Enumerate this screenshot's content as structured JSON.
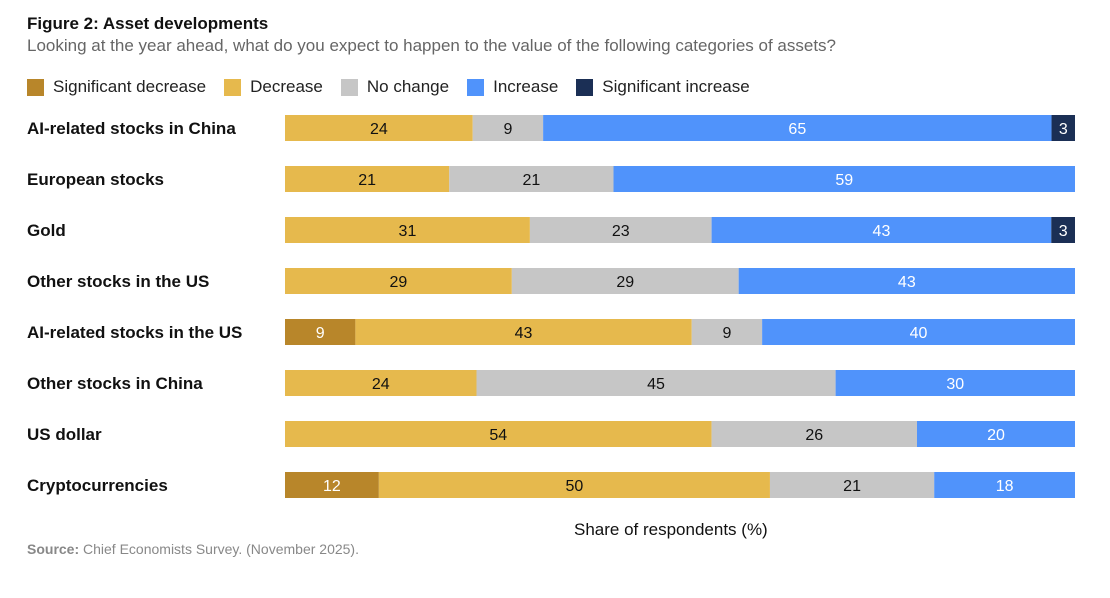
{
  "chart_data": {
    "type": "bar",
    "orientation": "horizontal",
    "stacked": true,
    "title": "Figure 2: Asset developments",
    "subtitle": "Looking at the year ahead, what do you expect to happen to the value of the following categories of assets?",
    "xlabel": "Share of respondents (%)",
    "ylabel": "",
    "xlim": [
      0,
      100
    ],
    "grid": false,
    "legend_position": "top-left",
    "categories": [
      "AI-related stocks in China",
      "European stocks",
      "Gold",
      "Other stocks in the US",
      "AI-related stocks in the US",
      "Other stocks in China",
      "US dollar",
      "Cryptocurrencies"
    ],
    "series": [
      {
        "name": "Significant decrease",
        "color": "#b8862a",
        "label_color": "#ffffff",
        "values": [
          null,
          null,
          null,
          null,
          9,
          null,
          null,
          12
        ]
      },
      {
        "name": "Decrease",
        "color": "#e6b94d",
        "label_color": "#111111",
        "values": [
          24,
          21,
          31,
          29,
          43,
          24,
          54,
          50
        ]
      },
      {
        "name": "No change",
        "color": "#c6c6c6",
        "label_color": "#111111",
        "values": [
          9,
          21,
          23,
          29,
          9,
          45,
          26,
          21
        ]
      },
      {
        "name": "Increase",
        "color": "#5093fb",
        "label_color": "#ffffff",
        "values": [
          65,
          59,
          43,
          43,
          40,
          30,
          20,
          18
        ]
      },
      {
        "name": "Significant increase",
        "color": "#1b2f55",
        "label_color": "#ffffff",
        "values": [
          3,
          null,
          3,
          null,
          null,
          null,
          null,
          null
        ]
      }
    ]
  },
  "source": {
    "label": "Source:",
    "text": " Chief Economists Survey. (November 2025)."
  }
}
